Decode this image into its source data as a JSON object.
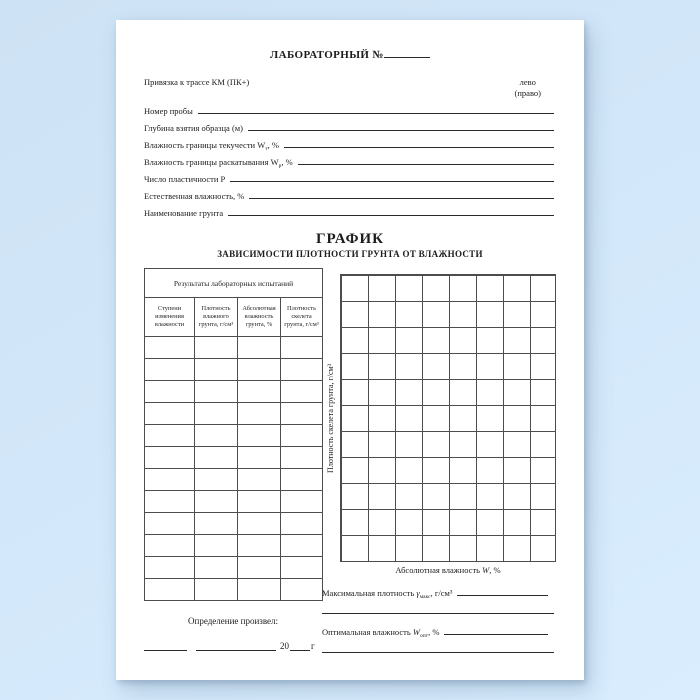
{
  "colors": {
    "background_top": "#cde2f4",
    "background_bottom": "#d9edfe",
    "paper": "#ffffff",
    "ink": "#1c1c1c",
    "table_border": "#4d4d4d"
  },
  "header": {
    "lab_title": "ЛАБОРАТОРНЫЙ №",
    "binding_label": "Привязка к трассе КМ (ПК+)",
    "side_top": "лево",
    "side_bottom": "(право)"
  },
  "fields": [
    {
      "pre": "Номер пробы",
      "sub": "",
      "post": ""
    },
    {
      "pre": "Глубина взятия образца (м)",
      "sub": "",
      "post": ""
    },
    {
      "pre": "Влажность границы текучести W",
      "sub": "т",
      "post": ", %"
    },
    {
      "pre": "Влажность границы раскатывания W",
      "sub": "р",
      "post": ", %"
    },
    {
      "pre": "Число пластичности Р",
      "sub": "",
      "post": ""
    },
    {
      "pre": "Естественная влажность, %",
      "sub": "",
      "post": ""
    },
    {
      "pre": "Наименование грунта",
      "sub": "",
      "post": ""
    }
  ],
  "graph_heading": {
    "title": "ГРАФИК",
    "subtitle": "ЗАВИСИМОСТИ ПЛОТНОСТИ ГРУНТА ОТ ВЛАЖНОСТИ"
  },
  "results_table": {
    "span_header": "Результаты лабораторных испытаний",
    "columns": [
      "Ступени изменения влажности",
      "Плотность влажного грунта, г/см³",
      "Абсолютная влажность грунта, %",
      "Плотность скелета грунта, г/см³"
    ],
    "empty_row_count": 12
  },
  "graph": {
    "y_axis_label": "Плотность скелета грунта, г/см³",
    "x_axis_label_pre": "Абсолютная влажность ",
    "x_axis_label_var": "W",
    "x_axis_label_post": ", %",
    "grid_columns": 8,
    "grid_rows": 11
  },
  "footer": {
    "left_title": "Определение произвел:",
    "year_prefix": "20",
    "year_suffix": "г",
    "max_density": {
      "pre": "Максимальная плотность ",
      "var": "γ",
      "sub": "макс",
      "post": ", г/см³"
    },
    "opt_moisture": {
      "pre": "Оптимальная влажность ",
      "var": "W",
      "sub": "опт",
      "post": ", %"
    }
  }
}
